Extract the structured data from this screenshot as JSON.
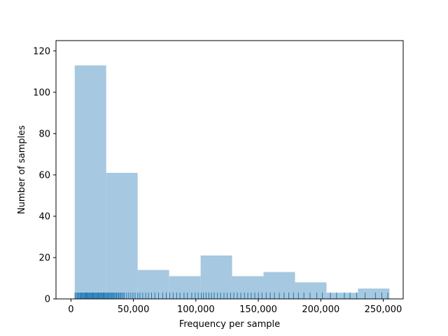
{
  "chart_data": {
    "type": "bar",
    "title": "",
    "xlabel": "Frequency per sample",
    "ylabel": "Number of samples",
    "xlim": [
      -12000,
      266000
    ],
    "ylim": [
      0,
      125
    ],
    "x_ticks": [
      0,
      50000,
      100000,
      150000,
      200000,
      250000
    ],
    "x_tick_labels": [
      "0",
      "50,000",
      "100,000",
      "150,000",
      "200,000",
      "250,000"
    ],
    "y_ticks": [
      0,
      20,
      40,
      60,
      80,
      100,
      120
    ],
    "y_tick_labels": [
      "0",
      "20",
      "40",
      "60",
      "80",
      "100",
      "120"
    ],
    "grid": false,
    "bar_color": "#a6c8e0",
    "rug_color": "#1f77b4",
    "bins": [
      {
        "start": 3000,
        "end": 28200,
        "count": 113
      },
      {
        "start": 28200,
        "end": 53400,
        "count": 61
      },
      {
        "start": 53400,
        "end": 78600,
        "count": 14
      },
      {
        "start": 78600,
        "end": 103800,
        "count": 11
      },
      {
        "start": 103800,
        "end": 129000,
        "count": 21
      },
      {
        "start": 129000,
        "end": 154200,
        "count": 11
      },
      {
        "start": 154200,
        "end": 179400,
        "count": 13
      },
      {
        "start": 179400,
        "end": 204600,
        "count": 8
      },
      {
        "start": 204600,
        "end": 229800,
        "count": 3
      },
      {
        "start": 229800,
        "end": 255000,
        "count": 5
      }
    ],
    "rug_values": [
      3200,
      4100,
      5000,
      5800,
      6500,
      7300,
      8000,
      8600,
      9200,
      9900,
      10500,
      11200,
      11800,
      12400,
      13000,
      13600,
      14200,
      14900,
      15500,
      16100,
      16800,
      17400,
      18000,
      18700,
      19300,
      20000,
      20600,
      21300,
      21900,
      22600,
      23200,
      23900,
      24500,
      25100,
      25800,
      26400,
      27100,
      27700,
      28400,
      29100,
      29800,
      30500,
      31200,
      31900,
      32700,
      33400,
      34100,
      34900,
      35700,
      36500,
      37300,
      38200,
      39000,
      39900,
      40800,
      41800,
      42700,
      44500,
      46200,
      47900,
      49600,
      51300,
      53500,
      55200,
      57400,
      59800,
      62100,
      64500,
      67200,
      70100,
      73400,
      76300,
      79100,
      81800,
      84600,
      87300,
      90500,
      93200,
      96700,
      99400,
      101900,
      104300,
      106100,
      108200,
      110400,
      112500,
      114700,
      117300,
      119800,
      122500,
      125100,
      127800,
      130400,
      133200,
      136000,
      138900,
      141600,
      144300,
      147200,
      150100,
      153000,
      156300,
      159500,
      162900,
      166800,
      170600,
      174400,
      178200,
      182100,
      186500,
      191400,
      196800,
      201300,
      207700,
      212600,
      218900,
      223400,
      228800,
      235500,
      243800,
      248900,
      253600
    ]
  }
}
